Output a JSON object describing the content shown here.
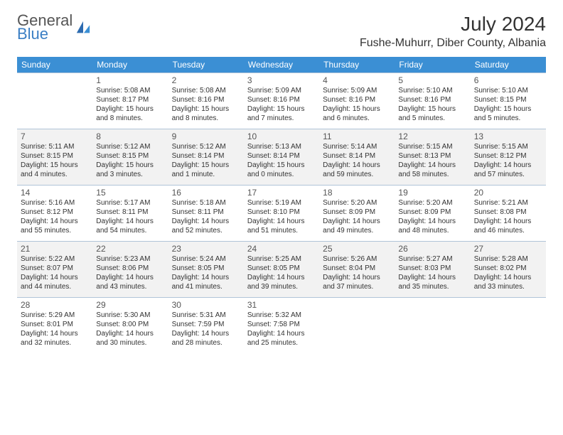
{
  "logo": {
    "general": "General",
    "blue": "Blue"
  },
  "title": "July 2024",
  "location": "Fushe-Muhurr, Diber County, Albania",
  "colors": {
    "header_bg": "#3b8fd4",
    "alt_row_bg": "#f2f2f2",
    "border": "#b0c4d8",
    "logo_blue": "#3b7fc4"
  },
  "day_headers": [
    "Sunday",
    "Monday",
    "Tuesday",
    "Wednesday",
    "Thursday",
    "Friday",
    "Saturday"
  ],
  "weeks": [
    {
      "alt": false,
      "cells": [
        {
          "day": "",
          "sunrise": "",
          "sunset": "",
          "daylight": ""
        },
        {
          "day": "1",
          "sunrise": "Sunrise: 5:08 AM",
          "sunset": "Sunset: 8:17 PM",
          "daylight": "Daylight: 15 hours and 8 minutes."
        },
        {
          "day": "2",
          "sunrise": "Sunrise: 5:08 AM",
          "sunset": "Sunset: 8:16 PM",
          "daylight": "Daylight: 15 hours and 8 minutes."
        },
        {
          "day": "3",
          "sunrise": "Sunrise: 5:09 AM",
          "sunset": "Sunset: 8:16 PM",
          "daylight": "Daylight: 15 hours and 7 minutes."
        },
        {
          "day": "4",
          "sunrise": "Sunrise: 5:09 AM",
          "sunset": "Sunset: 8:16 PM",
          "daylight": "Daylight: 15 hours and 6 minutes."
        },
        {
          "day": "5",
          "sunrise": "Sunrise: 5:10 AM",
          "sunset": "Sunset: 8:16 PM",
          "daylight": "Daylight: 15 hours and 5 minutes."
        },
        {
          "day": "6",
          "sunrise": "Sunrise: 5:10 AM",
          "sunset": "Sunset: 8:15 PM",
          "daylight": "Daylight: 15 hours and 5 minutes."
        }
      ]
    },
    {
      "alt": true,
      "cells": [
        {
          "day": "7",
          "sunrise": "Sunrise: 5:11 AM",
          "sunset": "Sunset: 8:15 PM",
          "daylight": "Daylight: 15 hours and 4 minutes."
        },
        {
          "day": "8",
          "sunrise": "Sunrise: 5:12 AM",
          "sunset": "Sunset: 8:15 PM",
          "daylight": "Daylight: 15 hours and 3 minutes."
        },
        {
          "day": "9",
          "sunrise": "Sunrise: 5:12 AM",
          "sunset": "Sunset: 8:14 PM",
          "daylight": "Daylight: 15 hours and 1 minute."
        },
        {
          "day": "10",
          "sunrise": "Sunrise: 5:13 AM",
          "sunset": "Sunset: 8:14 PM",
          "daylight": "Daylight: 15 hours and 0 minutes."
        },
        {
          "day": "11",
          "sunrise": "Sunrise: 5:14 AM",
          "sunset": "Sunset: 8:14 PM",
          "daylight": "Daylight: 14 hours and 59 minutes."
        },
        {
          "day": "12",
          "sunrise": "Sunrise: 5:15 AM",
          "sunset": "Sunset: 8:13 PM",
          "daylight": "Daylight: 14 hours and 58 minutes."
        },
        {
          "day": "13",
          "sunrise": "Sunrise: 5:15 AM",
          "sunset": "Sunset: 8:12 PM",
          "daylight": "Daylight: 14 hours and 57 minutes."
        }
      ]
    },
    {
      "alt": false,
      "cells": [
        {
          "day": "14",
          "sunrise": "Sunrise: 5:16 AM",
          "sunset": "Sunset: 8:12 PM",
          "daylight": "Daylight: 14 hours and 55 minutes."
        },
        {
          "day": "15",
          "sunrise": "Sunrise: 5:17 AM",
          "sunset": "Sunset: 8:11 PM",
          "daylight": "Daylight: 14 hours and 54 minutes."
        },
        {
          "day": "16",
          "sunrise": "Sunrise: 5:18 AM",
          "sunset": "Sunset: 8:11 PM",
          "daylight": "Daylight: 14 hours and 52 minutes."
        },
        {
          "day": "17",
          "sunrise": "Sunrise: 5:19 AM",
          "sunset": "Sunset: 8:10 PM",
          "daylight": "Daylight: 14 hours and 51 minutes."
        },
        {
          "day": "18",
          "sunrise": "Sunrise: 5:20 AM",
          "sunset": "Sunset: 8:09 PM",
          "daylight": "Daylight: 14 hours and 49 minutes."
        },
        {
          "day": "19",
          "sunrise": "Sunrise: 5:20 AM",
          "sunset": "Sunset: 8:09 PM",
          "daylight": "Daylight: 14 hours and 48 minutes."
        },
        {
          "day": "20",
          "sunrise": "Sunrise: 5:21 AM",
          "sunset": "Sunset: 8:08 PM",
          "daylight": "Daylight: 14 hours and 46 minutes."
        }
      ]
    },
    {
      "alt": true,
      "cells": [
        {
          "day": "21",
          "sunrise": "Sunrise: 5:22 AM",
          "sunset": "Sunset: 8:07 PM",
          "daylight": "Daylight: 14 hours and 44 minutes."
        },
        {
          "day": "22",
          "sunrise": "Sunrise: 5:23 AM",
          "sunset": "Sunset: 8:06 PM",
          "daylight": "Daylight: 14 hours and 43 minutes."
        },
        {
          "day": "23",
          "sunrise": "Sunrise: 5:24 AM",
          "sunset": "Sunset: 8:05 PM",
          "daylight": "Daylight: 14 hours and 41 minutes."
        },
        {
          "day": "24",
          "sunrise": "Sunrise: 5:25 AM",
          "sunset": "Sunset: 8:05 PM",
          "daylight": "Daylight: 14 hours and 39 minutes."
        },
        {
          "day": "25",
          "sunrise": "Sunrise: 5:26 AM",
          "sunset": "Sunset: 8:04 PM",
          "daylight": "Daylight: 14 hours and 37 minutes."
        },
        {
          "day": "26",
          "sunrise": "Sunrise: 5:27 AM",
          "sunset": "Sunset: 8:03 PM",
          "daylight": "Daylight: 14 hours and 35 minutes."
        },
        {
          "day": "27",
          "sunrise": "Sunrise: 5:28 AM",
          "sunset": "Sunset: 8:02 PM",
          "daylight": "Daylight: 14 hours and 33 minutes."
        }
      ]
    },
    {
      "alt": false,
      "cells": [
        {
          "day": "28",
          "sunrise": "Sunrise: 5:29 AM",
          "sunset": "Sunset: 8:01 PM",
          "daylight": "Daylight: 14 hours and 32 minutes."
        },
        {
          "day": "29",
          "sunrise": "Sunrise: 5:30 AM",
          "sunset": "Sunset: 8:00 PM",
          "daylight": "Daylight: 14 hours and 30 minutes."
        },
        {
          "day": "30",
          "sunrise": "Sunrise: 5:31 AM",
          "sunset": "Sunset: 7:59 PM",
          "daylight": "Daylight: 14 hours and 28 minutes."
        },
        {
          "day": "31",
          "sunrise": "Sunrise: 5:32 AM",
          "sunset": "Sunset: 7:58 PM",
          "daylight": "Daylight: 14 hours and 25 minutes."
        },
        {
          "day": "",
          "sunrise": "",
          "sunset": "",
          "daylight": ""
        },
        {
          "day": "",
          "sunrise": "",
          "sunset": "",
          "daylight": ""
        },
        {
          "day": "",
          "sunrise": "",
          "sunset": "",
          "daylight": ""
        }
      ]
    }
  ]
}
